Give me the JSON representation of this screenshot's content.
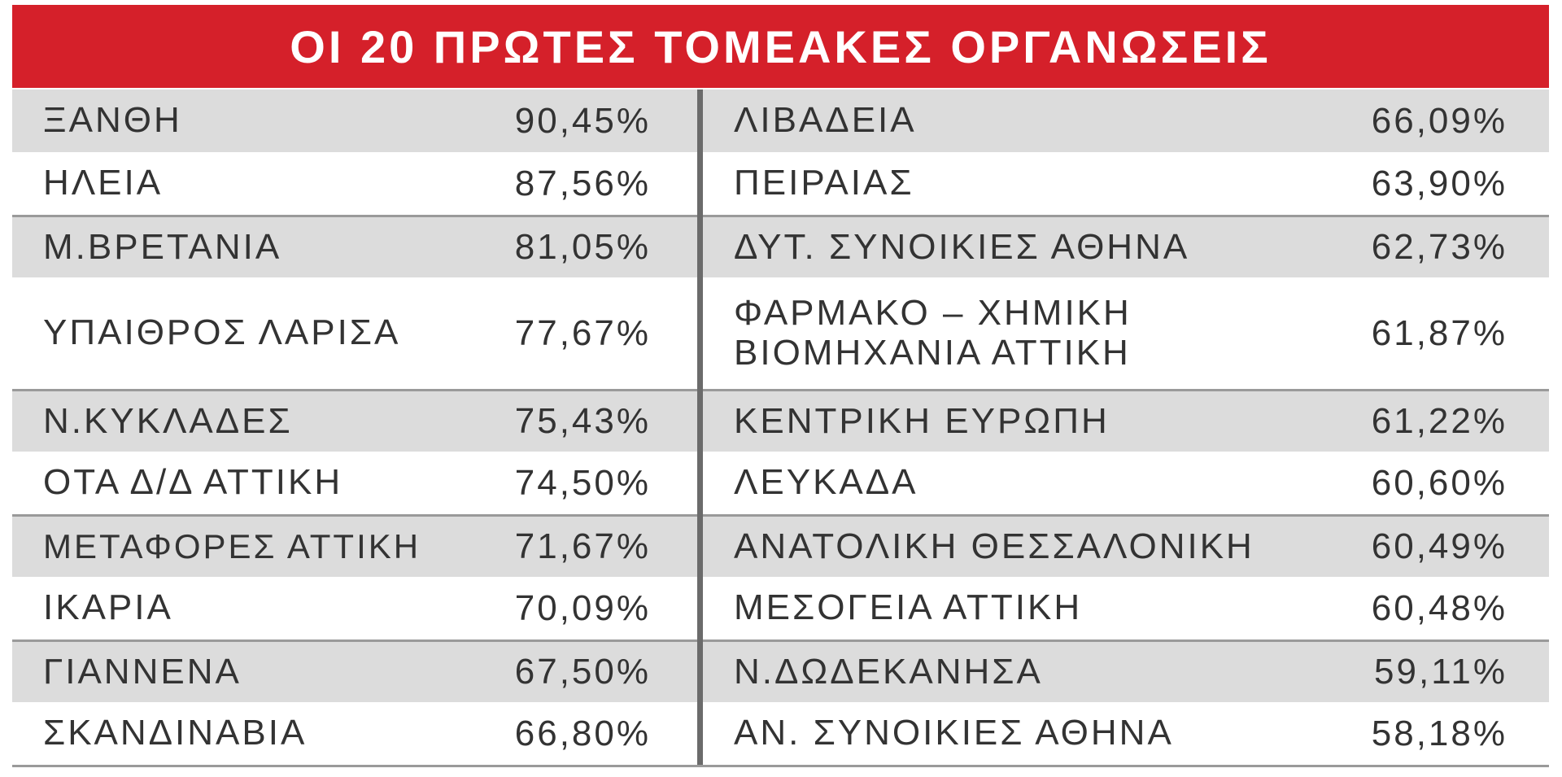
{
  "header": {
    "title": "ΟΙ 20 ΠΡΩΤΕΣ ΤΟΜΕΑΚΕΣ ΟΡΓΑΝΩΣΕΙΣ"
  },
  "table": {
    "rows": [
      [
        "ΞΑΝΘΗ",
        "90,45%",
        "ΛΙΒΑΔΕΙΑ",
        "66,09%"
      ],
      [
        "ΗΛΕΙΑ",
        "87,56%",
        "ΠΕΙΡΑΙΑΣ",
        "63,90%"
      ],
      [
        "Μ.ΒΡΕΤΑΝΙΑ",
        "81,05%",
        "ΔΥΤ. ΣΥΝΟΙΚΙΕΣ ΑΘΗΝΑ",
        "62,73%"
      ],
      [
        "ΥΠΑΙΘΡΟΣ ΛΑΡΙΣΑ",
        "77,67%",
        "ΦΑΡΜΑΚΟ – ΧΗΜΙΚΗ\nΒΙΟΜΗΧΑΝΙΑ ΑΤΤΙΚΗ",
        "61,87%"
      ],
      [
        "Ν.ΚΥΚΛΑΔΕΣ",
        "75,43%",
        "ΚΕΝΤΡΙΚΗ ΕΥΡΩΠΗ",
        "61,22%"
      ],
      [
        "ΟΤΑ Δ/Δ ΑΤΤΙΚΗ",
        "74,50%",
        "ΛΕΥΚΑΔΑ",
        "60,60%"
      ],
      [
        "ΜΕΤΑΦΟΡΕΣ ΑΤΤΙΚΗ",
        "71,67%",
        "ΑΝΑΤΟΛΙΚΗ ΘΕΣΣΑΛΟΝΙΚΗ",
        "60,49%"
      ],
      [
        "ΙΚΑΡΙΑ",
        "70,09%",
        "ΜΕΣΟΓΕΙΑ ΑΤΤΙΚΗ",
        "60,48%"
      ],
      [
        "ΓΙΑΝΝΕΝΑ",
        "67,50%",
        "Ν.ΔΩΔΕΚΑΝΗΣΑ",
        "59,11%"
      ],
      [
        "ΣΚΑΝΔΙΝΑΒΙΑ",
        "66,80%",
        "ΑΝ. ΣΥΝΟΙΚΙΕΣ ΑΘΗΝΑ",
        "58,18%"
      ]
    ]
  }
}
